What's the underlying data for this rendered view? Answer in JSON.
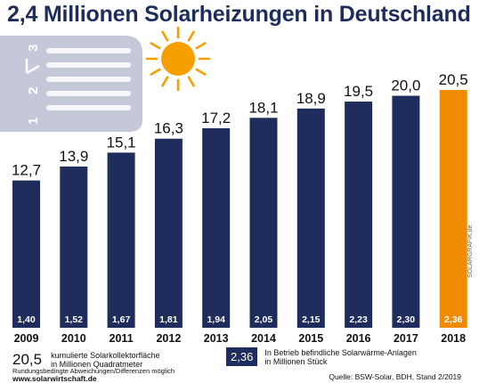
{
  "chart_data": {
    "type": "bar",
    "title": "2,4 Millionen Solarheizungen in Deutschland",
    "categories": [
      "2009",
      "2010",
      "2011",
      "2012",
      "2013",
      "2014",
      "2015",
      "2016",
      "2017",
      "2018"
    ],
    "series": [
      {
        "name": "kumulierte Solarkollektorfläche in Millionen Quadratmeter",
        "values": [
          12.7,
          13.9,
          15.1,
          16.3,
          17.2,
          18.1,
          18.9,
          19.5,
          20.0,
          20.5
        ],
        "labels": [
          "12,7",
          "13,9",
          "15,1",
          "16,3",
          "17,2",
          "18,1",
          "18,9",
          "19,5",
          "20,0",
          "20,5"
        ]
      },
      {
        "name": "In Betrieb befindliche Solarwärme-Anlagen in Millionen Stück",
        "values": [
          1.4,
          1.52,
          1.67,
          1.81,
          1.94,
          2.05,
          2.15,
          2.23,
          2.3,
          2.36
        ],
        "labels": [
          "1,40",
          "1,52",
          "1,67",
          "1,81",
          "1,94",
          "2,05",
          "2,15",
          "2,23",
          "2,30",
          "2,36"
        ]
      }
    ],
    "ylim": [
      0,
      21.5
    ],
    "grid": false,
    "legend": "bottom",
    "colors": {
      "bar": "#1f2d5c",
      "highlight": "#f08a00",
      "sun": "#f5a000",
      "panel": "#c5c8d8"
    }
  },
  "legend": {
    "left_value": "20,5",
    "left_line1": "kumulierte Solarkollektorfläche",
    "left_line2": "in Millionen Quadratmeter",
    "right_value": "2,36",
    "right_line1": "In Betrieb befindliche Solarwärme-Anlagen",
    "right_line2": "in Millionen Stück"
  },
  "footer": {
    "note": "Rundungsbedingte Abweichungen/Differenzen möglich",
    "website": "www.solarwirtschaft.de",
    "source": "Quelle: BSW-Solar, BDH, Stand 2/2019",
    "credit": "SOLARGRAFIK.de"
  },
  "illustration": {
    "panel_marks": [
      "1",
      "2",
      "3"
    ]
  }
}
